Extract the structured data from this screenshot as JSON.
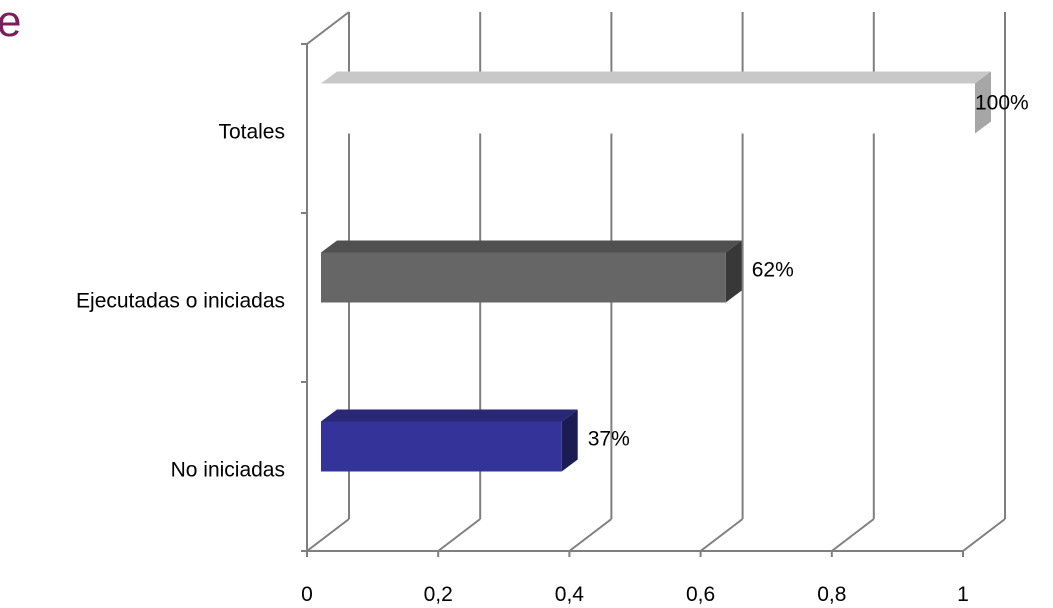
{
  "title_fragment": "e",
  "chart_data": {
    "type": "bar",
    "orientation": "horizontal",
    "style": "3d",
    "categories": [
      "Totales",
      "Ejecutadas o iniciadas",
      "No iniciadas"
    ],
    "values": [
      1.0,
      0.62,
      0.37
    ],
    "data_labels": [
      "100%",
      "62%",
      "37%"
    ],
    "bar_colors": [
      "#ffffff",
      "#666666",
      "#333399"
    ],
    "xlim": [
      0,
      1
    ],
    "x_ticks": [
      0,
      0.2,
      0.4,
      0.6,
      0.8,
      1
    ],
    "x_tick_labels": [
      "0",
      "0,2",
      "0,4",
      "0,6",
      "0,8",
      "1"
    ],
    "grid": "vertical",
    "legend": "none"
  }
}
